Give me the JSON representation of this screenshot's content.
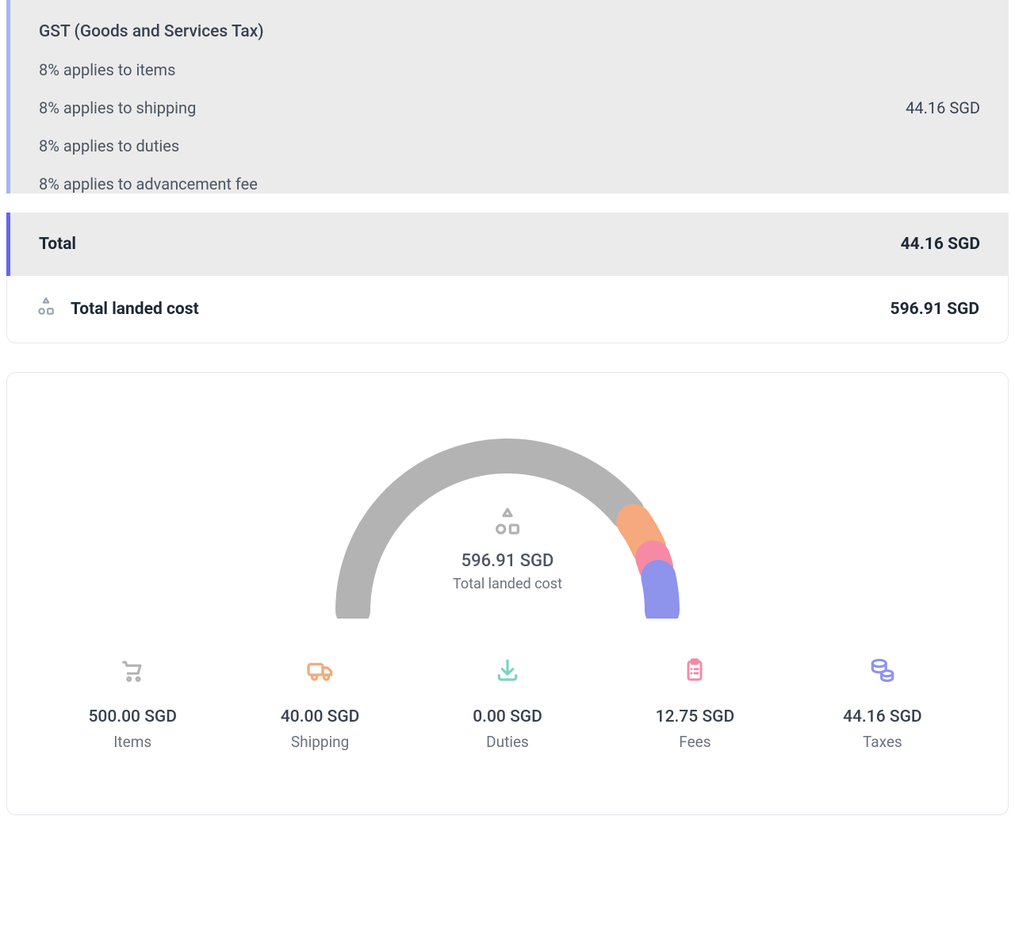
{
  "tax": {
    "title": "GST (Goods and Services Tax)",
    "lines": [
      {
        "text": "8% applies to items",
        "value": ""
      },
      {
        "text": "8% applies to shipping",
        "value": "44.16 SGD"
      },
      {
        "text": "8% applies to duties",
        "value": ""
      },
      {
        "text": "8% applies to advancement fee",
        "value": ""
      }
    ],
    "total_label": "Total",
    "total_value": "44.16 SGD"
  },
  "landed": {
    "label": "Total landed cost",
    "value": "596.91 SGD"
  },
  "gauge": {
    "value": "596.91 SGD",
    "label": "Total landed cost",
    "segments": [
      {
        "name": "items",
        "proportion": 0.838,
        "color": "#b3b3b3"
      },
      {
        "name": "shipping",
        "proportion": 0.067,
        "color": "#f5a97c"
      },
      {
        "name": "duties",
        "proportion": 0.0,
        "color": "#7dd3c0"
      },
      {
        "name": "fees",
        "proportion": 0.021,
        "color": "#f68aa5"
      },
      {
        "name": "taxes",
        "proportion": 0.074,
        "color": "#8e93ec"
      }
    ],
    "track_color": "#b3b3b3",
    "stroke_width": 44,
    "radius": 195,
    "gap_deg": 4
  },
  "breakdown": [
    {
      "key": "items",
      "icon": "cart-icon",
      "color": "#b3b3b3",
      "value": "500.00 SGD",
      "label": "Items"
    },
    {
      "key": "shipping",
      "icon": "truck-icon",
      "color": "#f5a97c",
      "value": "40.00 SGD",
      "label": "Shipping"
    },
    {
      "key": "duties",
      "icon": "import-icon",
      "color": "#7dd3c0",
      "value": "0.00 SGD",
      "label": "Duties"
    },
    {
      "key": "fees",
      "icon": "clipboard-icon",
      "color": "#f68aa5",
      "value": "12.75 SGD",
      "label": "Fees"
    },
    {
      "key": "taxes",
      "icon": "coins-icon",
      "color": "#8e93ec",
      "value": "44.16 SGD",
      "label": "Taxes"
    }
  ]
}
